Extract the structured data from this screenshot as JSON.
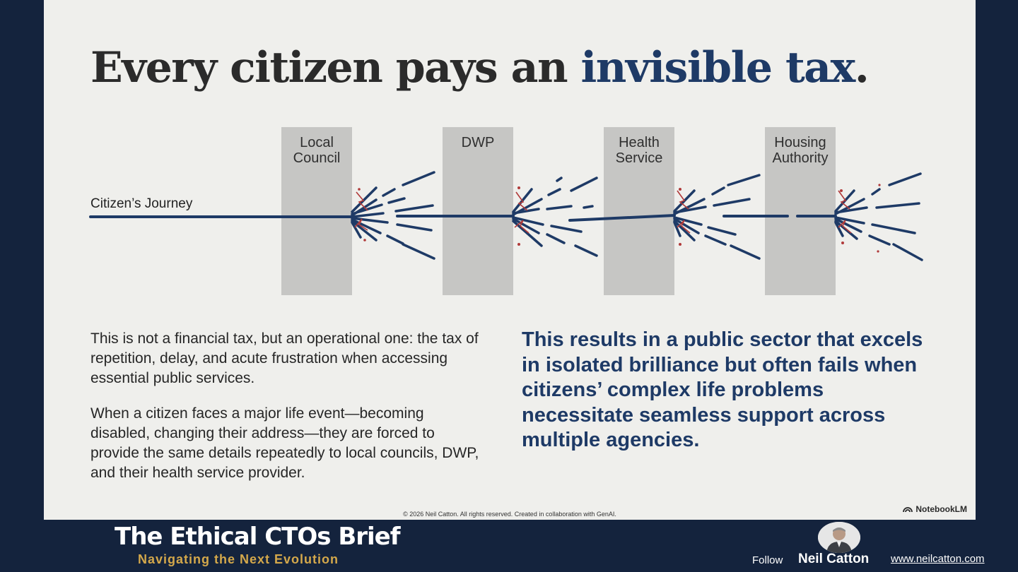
{
  "slide": {
    "title_main": "Every citizen pays an ",
    "title_accent": "invisible tax",
    "title_end": ".",
    "diagram": {
      "journey_label": "Citizen’s Journey",
      "agencies": [
        {
          "line1": "Local",
          "line2": "Council"
        },
        {
          "line1": "DWP",
          "line2": ""
        },
        {
          "line1": "Health",
          "line2": "Service"
        },
        {
          "line1": "Housing",
          "line2": "Authority"
        }
      ]
    },
    "paragraph_1": "This is not a financial tax, but an operational one: the tax of repetition, delay, and acute frustration when accessing essential public services.",
    "paragraph_2": "When a citizen faces a major life event—becoming disabled, changing their address—they are forced to provide the same details repeatedly to local councils, DWP, and their health service provider.",
    "callout": "This results in a public sector that excels in isolated brilliance but often fails when citizens’ complex life problems necessitate seamless support across multiple agencies.",
    "copyright": "© 2026 Neil Catton. All rights reserved. Created in collaboration with GenAI.",
    "watermark": "NotebookLM"
  },
  "footer": {
    "brand_title": "The Ethical CTOs Brief",
    "brand_tagline": "Navigating the Next Evolution",
    "follow_label": "Follow",
    "author_name": "Neil Catton",
    "website": "www.neilcatton.com"
  },
  "colors": {
    "background": "#14233d",
    "slide": "#efefec",
    "accent_navy": "#1e3a66",
    "spark_red": "#b03a3a",
    "agency_block": "#c6c6c4",
    "tagline_gold": "#d4a84b"
  },
  "icons": [
    "spark-icon",
    "notebooklm-icon",
    "avatar"
  ]
}
